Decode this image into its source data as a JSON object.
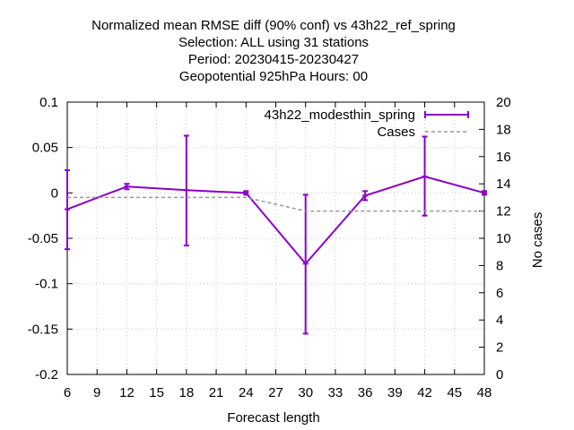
{
  "title_lines": [
    "Normalized mean RMSE diff (90% conf) vs 43h22_ref_spring",
    "Selection: ALL using    31 stations",
    "Period: 20230415-20230427",
    "Geopotential 925hPa   Hours:  00"
  ],
  "chart_data": {
    "type": "line",
    "xlabel": "Forecast length",
    "ylabel": "",
    "y2label": "No cases",
    "xlim": [
      6,
      48
    ],
    "ylim": [
      -0.2,
      0.1
    ],
    "y2lim": [
      0,
      20
    ],
    "xticks": [
      6,
      9,
      12,
      15,
      18,
      21,
      24,
      27,
      30,
      33,
      36,
      39,
      42,
      45,
      48
    ],
    "yticks": [
      0.1,
      0.05,
      0,
      -0.05,
      -0.1,
      -0.15,
      -0.2
    ],
    "ytick_labels": [
      "0.1",
      "0.05",
      "0",
      "-0.05",
      "-0.1",
      "-0.15",
      "-0.2"
    ],
    "y2ticks": [
      0,
      2,
      4,
      6,
      8,
      10,
      12,
      14,
      16,
      18,
      20
    ],
    "grid": true,
    "legend_position": "top-right",
    "legend_rows": [
      {
        "label": "43h22_modesthin_spring"
      },
      {
        "label": "Cases"
      }
    ],
    "series": [
      {
        "name": "43h22_modesthin_spring",
        "color": "#8b00c8",
        "axis": "left",
        "x": [
          6,
          12,
          18,
          24,
          30,
          36,
          42,
          48
        ],
        "y": [
          -0.018,
          0.007,
          0.003,
          0.0,
          -0.078,
          -0.003,
          0.018,
          0.0
        ],
        "err_low": [
          -0.062,
          0.004,
          -0.058,
          -0.002,
          -0.155,
          -0.008,
          -0.025,
          -0.002
        ],
        "err_high": [
          0.025,
          0.01,
          0.063,
          0.002,
          -0.002,
          0.002,
          0.062,
          0.002
        ]
      },
      {
        "name": "Cases",
        "color": "#999999",
        "axis": "right",
        "dashed": true,
        "x": [
          6,
          12,
          18,
          24,
          30,
          36,
          42,
          48
        ],
        "y": [
          13,
          13,
          13,
          13,
          12,
          12,
          12,
          12
        ]
      }
    ]
  }
}
